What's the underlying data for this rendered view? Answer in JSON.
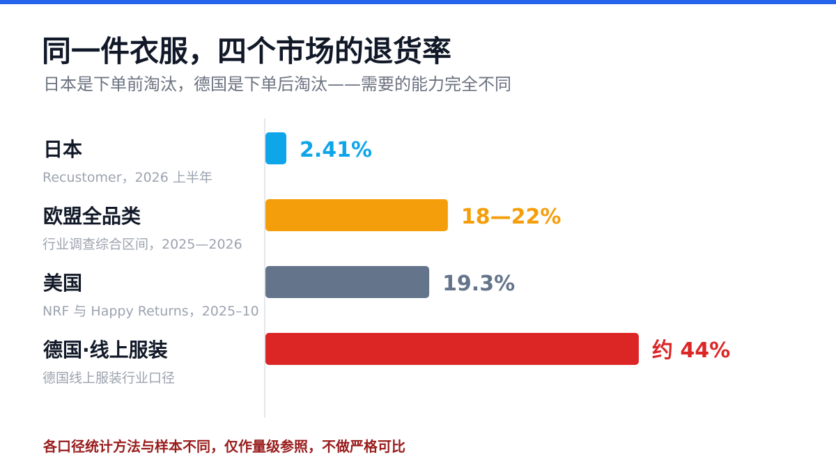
{
  "title": "同一件衣服，四个市场的退货率",
  "subtitle": "日本是下单前淘汰，德国是下单后淘汰——需要的能力完全不同",
  "footnote": "各口径统计方法与样本不同，仅作量级参照，不做严格可比",
  "colors": {
    "top_bar": "#2563eb"
  },
  "chart_data": {
    "type": "bar",
    "orientation": "horizontal",
    "unit": "%",
    "xlim": [
      0,
      50
    ],
    "grid": false,
    "categories": [
      "日本",
      "欧盟全品类",
      "美国",
      "德国·线上服装"
    ],
    "sources": [
      "Recustomer，2026 上半年",
      "行业调查综合区间，2025—2026",
      "NRF 与 Happy Returns，2025–10",
      "德国线上服装行业口径"
    ],
    "values": [
      2.41,
      21.5,
      19.3,
      44
    ],
    "value_labels": [
      "2.41%",
      "18—22%",
      "19.3%",
      "约 44%"
    ],
    "colors": [
      "#0ea5e9",
      "#f59e0b",
      "#64748b",
      "#dc2626"
    ]
  }
}
